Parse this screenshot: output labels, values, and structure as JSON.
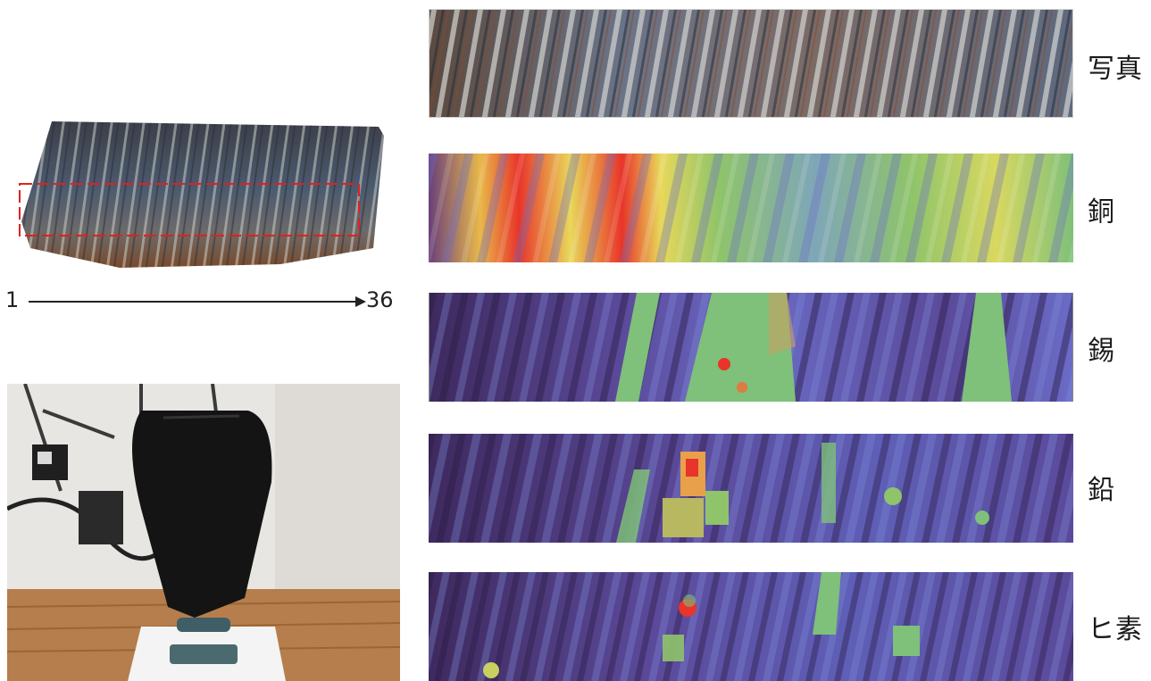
{
  "axis": {
    "start": "1",
    "end": "36"
  },
  "panels": [
    {
      "label": "写真"
    },
    {
      "label": "銅"
    },
    {
      "label": "錫"
    },
    {
      "label": "鉛"
    },
    {
      "label": "ヒ素"
    }
  ],
  "colors": {
    "heatmap_low": "#4b2a6e",
    "heatmap_mid_blue": "#6a6cc6",
    "heatmap_green": "#7fc07a",
    "heatmap_yellow": "#e8d85a",
    "heatmap_high": "#e8342a",
    "selection_box": "#e02020"
  }
}
